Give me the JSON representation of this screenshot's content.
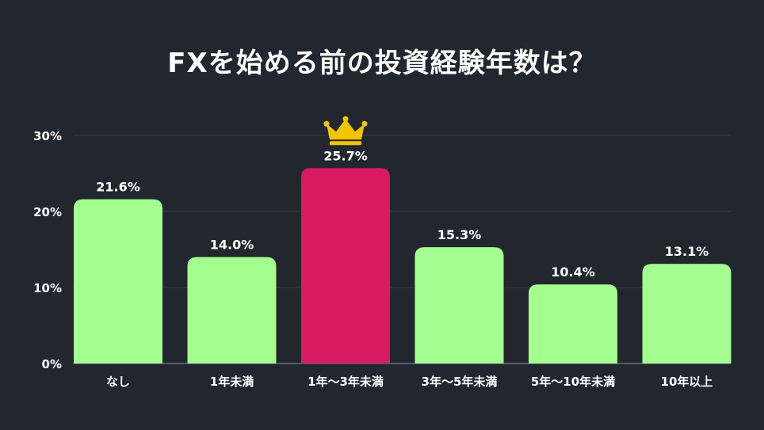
{
  "title": "FXを始める前の投資経験年数は？",
  "colors": {
    "background": "#22262e",
    "bar": "#a3ff8f",
    "highlight_bar": "#d81b60",
    "text": "#ffffff",
    "grid": "#3a3f47",
    "crown": "#f5c400"
  },
  "highlight_icon": "crown-icon",
  "chart_data": {
    "type": "bar",
    "categories": [
      "なし",
      "1年未満",
      "1年〜3年未満",
      "3年〜5年未満",
      "5年〜10年未満",
      "10年以上"
    ],
    "values": [
      21.6,
      14.0,
      25.7,
      15.3,
      10.4,
      13.1
    ],
    "value_labels": [
      "21.6%",
      "14.0%",
      "25.7%",
      "15.3%",
      "10.4%",
      "13.1%"
    ],
    "highlight_index": 2,
    "yticks": [
      0,
      10,
      20,
      30
    ],
    "ytick_labels": [
      "0%",
      "10%",
      "20%",
      "30%"
    ],
    "ylim": [
      0,
      30
    ],
    "grid": true,
    "legend": "none"
  }
}
